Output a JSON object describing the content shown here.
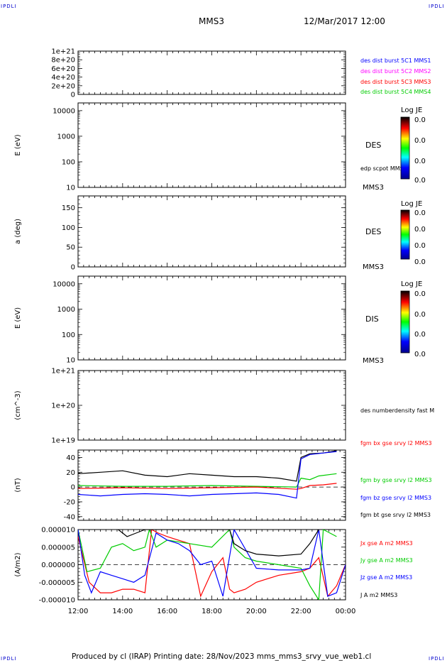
{
  "corner_labels": {
    "top_left": "IPDLI",
    "top_right": "IPDLI",
    "bottom_left": "IPDLI",
    "bottom_right": "IPDLI"
  },
  "header": {
    "spacecraft": "MMS3",
    "datetime": "12/Mar/2017 12:00"
  },
  "footer": {
    "text": "Produced by cl (IRAP)   Printing date: 28/Nov/2023   mms_mms3_srvy_vue_web1.cl"
  },
  "colors": {
    "blue": "#0000ff",
    "magenta": "#ff00ff",
    "red": "#ff0000",
    "green": "#00cc00",
    "black": "#000000"
  },
  "time_axis": {
    "ticks": [
      "12:00",
      "14:00",
      "16:00",
      "18:00",
      "20:00",
      "22:00",
      "00:00"
    ]
  },
  "chart_data": [
    {
      "type": "line",
      "name": "burst",
      "ylim": [
        0,
        1e+21
      ],
      "tick_labels": [
        "1e+21",
        "8e+20",
        "6e+20",
        "4e+20",
        "2e+20",
        "0"
      ],
      "tick_values": [
        1e+21,
        8e+20,
        6e+20,
        4e+20,
        2e+20,
        0
      ],
      "legend": [
        {
          "label": "des dist burst 5C1 MMS1",
          "color": "#0000ff"
        },
        {
          "label": "des dist burst 5C2 MMS2",
          "color": "#ff00ff"
        },
        {
          "label": "des dist burst 5C3 MMS3",
          "color": "#ff0000"
        },
        {
          "label": "des dist burst 5C4 MMS4",
          "color": "#00cc00"
        }
      ],
      "reference_line": 0
    },
    {
      "type": "heatmap",
      "name": "des-energy",
      "ylabel": "E (eV)",
      "yscale": "log",
      "ylim": [
        10,
        20000
      ],
      "tick_labels": [
        "10000",
        "1000",
        "100",
        "10"
      ],
      "tick_values": [
        10000,
        1000,
        100,
        10
      ],
      "right_labels": [
        "DES",
        "edp scpot MMS3",
        "MMS3"
      ],
      "colorbar": {
        "title": "Log JE",
        "ticks": [
          "0.0",
          "0.0",
          "0.0",
          "0.0"
        ]
      }
    },
    {
      "type": "heatmap",
      "name": "des-pitch",
      "ylabel": "a (deg)",
      "ylim": [
        0,
        180
      ],
      "tick_labels": [
        "150",
        "100",
        "50",
        "0"
      ],
      "tick_values": [
        150,
        100,
        50,
        0
      ],
      "right_labels": [
        "DES",
        "MMS3"
      ],
      "colorbar": {
        "title": "Log JE",
        "ticks": [
          "0.0",
          "0.0",
          "0.0",
          "0.0"
        ]
      }
    },
    {
      "type": "heatmap",
      "name": "dis-energy",
      "ylabel": "E (eV)",
      "yscale": "log",
      "ylim": [
        10,
        20000
      ],
      "tick_labels": [
        "10000",
        "1000",
        "100",
        "10"
      ],
      "tick_values": [
        10000,
        1000,
        100,
        10
      ],
      "right_labels": [
        "DIS",
        "MMS3"
      ],
      "colorbar": {
        "title": "Log JE",
        "ticks": [
          "0.0",
          "0.0",
          "0.0",
          "0.0"
        ]
      }
    },
    {
      "type": "line",
      "name": "density",
      "ylabel": "(cm^-3)",
      "yscale": "log",
      "ylim": [
        1e+19,
        1e+21
      ],
      "tick_labels": [
        "1e+21",
        "1e+20",
        "1e+19"
      ],
      "tick_values": [
        1e+21,
        1e+20,
        1e+19
      ],
      "legend": [
        {
          "label": "des numberdensity fast M",
          "color": "#000000"
        }
      ]
    },
    {
      "type": "line",
      "name": "fgm",
      "ylabel": "(nT)",
      "ylim": [
        -45,
        50
      ],
      "tick_labels": [
        "40",
        "20",
        "0",
        "-20",
        "-40"
      ],
      "tick_values": [
        40,
        20,
        0,
        -20,
        -40
      ],
      "reference_line": 0,
      "legend": [
        {
          "label": "fgm bx gse srvy l2 MMS3",
          "color": "#ff0000"
        },
        {
          "label": "fgm by gse srvy l2 MMS3",
          "color": "#00cc00"
        },
        {
          "label": "fgm bz gse srvy l2 MMS3",
          "color": "#0000ff"
        },
        {
          "label": "fgm bt gse srvy l2 MMS3",
          "color": "#000000"
        }
      ],
      "series": [
        {
          "name": "fgm bt gse srvy l2 MMS3",
          "color": "#000000",
          "x": [
            12.0,
            13.0,
            14.0,
            15.0,
            16.0,
            17.0,
            18.0,
            19.0,
            20.0,
            21.0,
            21.8,
            22.0,
            22.4,
            23.0,
            23.6
          ],
          "y": [
            18,
            20,
            22,
            16,
            14,
            18,
            16,
            14,
            14,
            12,
            8,
            40,
            45,
            46,
            49
          ]
        },
        {
          "name": "fgm by gse srvy l2 MMS3",
          "color": "#00cc00",
          "x": [
            12.0,
            14.0,
            16.0,
            18.0,
            20.0,
            21.8,
            22.0,
            22.4,
            22.8,
            23.6
          ],
          "y": [
            2,
            1,
            1,
            2,
            1,
            0,
            12,
            10,
            15,
            18
          ]
        },
        {
          "name": "fgm bx gse srvy l2 MMS3",
          "color": "#ff0000",
          "x": [
            12.0,
            14.0,
            16.0,
            18.0,
            20.0,
            21.8,
            22.0,
            22.4,
            23.0,
            23.6
          ],
          "y": [
            -2,
            -1,
            -2,
            -1,
            0,
            -3,
            -2,
            2,
            3,
            5
          ]
        },
        {
          "name": "fgm bz gse srvy l2 MMS3",
          "color": "#0000ff",
          "x": [
            12.0,
            13.0,
            14.0,
            15.0,
            16.0,
            17.0,
            18.0,
            19.0,
            20.0,
            21.0,
            21.8,
            22.0,
            22.4,
            23.0,
            23.6
          ],
          "y": [
            -10,
            -12,
            -10,
            -9,
            -10,
            -12,
            -10,
            -9,
            -8,
            -10,
            -15,
            38,
            44,
            46,
            48
          ]
        }
      ]
    },
    {
      "type": "line",
      "name": "current-density",
      "ylabel": "(A/m2)",
      "ylim": [
        -1e-05,
        1e-05
      ],
      "tick_labels": [
        "0.000010",
        "0.000005",
        "0.000000",
        "-0.000005",
        "-0.000010"
      ],
      "tick_values": [
        1e-05,
        5e-06,
        0,
        -5e-06,
        -1e-05
      ],
      "reference_line": 0,
      "legend": [
        {
          "label": "Jx gse A m2 MMS3",
          "color": "#ff0000"
        },
        {
          "label": "Jy gse A m2 MMS3",
          "color": "#00cc00"
        },
        {
          "label": "Jz gse A m2 MMS3",
          "color": "#0000ff"
        },
        {
          "label": "J A m2 MMS3",
          "color": "#000000"
        }
      ],
      "series": [
        {
          "name": "Jx gse A m2 MMS3",
          "color": "#ff0000",
          "x": [
            12.0,
            12.5,
            13.0,
            13.5,
            14.0,
            14.5,
            15.0,
            15.3,
            15.6,
            16.0,
            16.5,
            17.0,
            17.5,
            18.0,
            18.5,
            18.8,
            19.0,
            19.5,
            20.0,
            21.0,
            22.0,
            22.4,
            22.8,
            23.2,
            23.6,
            24.0
          ],
          "y": [
            8e-06,
            -5e-06,
            -8e-06,
            -8e-06,
            -7e-06,
            -7e-06,
            -8e-06,
            1e-05,
            9e-06,
            8e-06,
            7e-06,
            6e-06,
            -9e-06,
            -2e-06,
            2e-06,
            -7e-06,
            -8e-06,
            -7e-06,
            -5e-06,
            -3e-06,
            -2e-06,
            -1e-06,
            2e-06,
            -9e-06,
            -6e-06,
            0
          ]
        },
        {
          "name": "Jy gse A m2 MMS3",
          "color": "#00cc00",
          "x": [
            12.0,
            12.4,
            13.0,
            13.5,
            14.0,
            14.5,
            15.0,
            15.2,
            15.5,
            16.0,
            17.0,
            18.0,
            18.8,
            19.0,
            19.5,
            20.0,
            21.0,
            22.0,
            22.4,
            22.8,
            23.0,
            23.6
          ],
          "y": [
            1e-05,
            -2e-06,
            -1e-06,
            5e-06,
            6e-06,
            4e-06,
            5e-06,
            1e-05,
            5e-06,
            7e-06,
            6e-06,
            5e-06,
            1e-05,
            5e-06,
            2e-06,
            1e-06,
            0,
            -1e-06,
            -6e-06,
            -1e-05,
            1e-05,
            8e-06
          ]
        },
        {
          "name": "Jz gse A m2 MMS3",
          "color": "#0000ff",
          "x": [
            12.0,
            12.3,
            12.6,
            13.0,
            13.5,
            14.0,
            14.5,
            15.0,
            15.5,
            16.0,
            16.5,
            17.0,
            17.5,
            18.0,
            18.5,
            19.0,
            20.0,
            21.0,
            22.0,
            22.4,
            22.8,
            23.2,
            23.6,
            24.0
          ],
          "y": [
            1e-05,
            -3e-06,
            -8e-06,
            -2e-06,
            -3e-06,
            -4e-06,
            -5e-06,
            -3e-06,
            9e-06,
            7e-06,
            6e-06,
            4e-06,
            0,
            1e-06,
            -9e-06,
            1e-05,
            -1e-06,
            -1.5e-06,
            -1.5e-06,
            -1e-06,
            1e-05,
            -9e-06,
            -8e-06,
            0
          ]
        },
        {
          "name": "J A m2 MMS3",
          "color": "#000000",
          "x": [
            13.8,
            14.2,
            14.6,
            15.0,
            18.8,
            19.0,
            19.5,
            20.0,
            21.0,
            22.0,
            22.4,
            22.8
          ],
          "y": [
            1e-05,
            8e-06,
            9e-06,
            1e-05,
            1e-05,
            6e-06,
            4e-06,
            3e-06,
            2.5e-06,
            3e-06,
            6e-06,
            1e-05
          ]
        }
      ]
    }
  ]
}
